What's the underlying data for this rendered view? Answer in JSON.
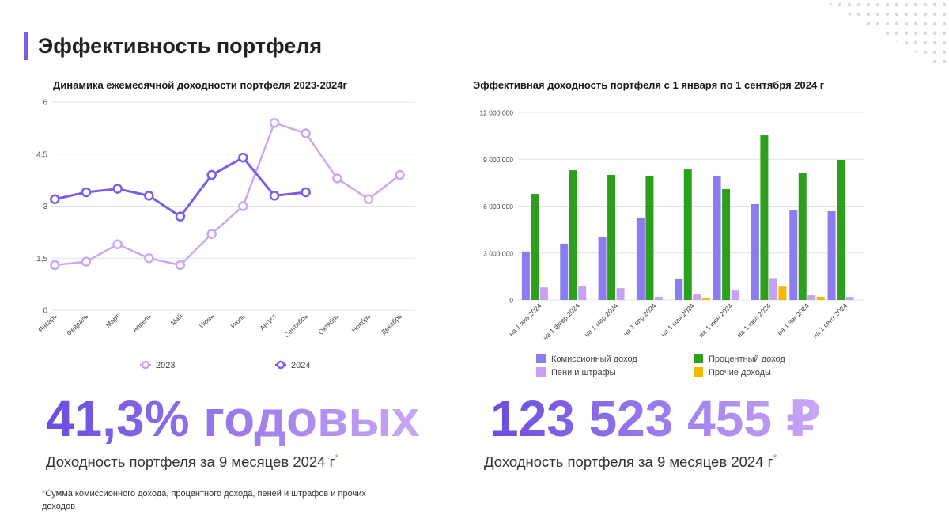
{
  "title": "Эффективность портфеля",
  "chart_data": [
    {
      "type": "line",
      "title": "Динамика ежемесячной доходности портфеля 2023-2024г",
      "categories": [
        "Январь",
        "Февраль",
        "Март",
        "Апрель",
        "Май",
        "Июнь",
        "Июль",
        "Август",
        "Сентябрь",
        "Октябрь",
        "Ноябрь",
        "Декабрь"
      ],
      "series": [
        {
          "name": "2023",
          "color": "#c9a8f5",
          "values": [
            1.3,
            1.4,
            1.9,
            1.5,
            1.3,
            2.2,
            3.0,
            5.4,
            5.1,
            3.8,
            3.2,
            3.9
          ]
        },
        {
          "name": "2024",
          "color": "#7b5ce6",
          "values": [
            3.2,
            3.4,
            3.5,
            3.3,
            2.7,
            3.9,
            4.4,
            3.3,
            3.4,
            null,
            null,
            null
          ]
        }
      ],
      "ylim": [
        0,
        6
      ],
      "yticks": [
        0,
        {
          "value": 1.5,
          "label": "1,5"
        },
        3,
        {
          "value": 4.5,
          "label": "4,5"
        },
        6
      ],
      "grid": true,
      "legend": "bottom"
    },
    {
      "type": "bar",
      "title": "Эффективная доходность портфеля с 1 января по 1 сентября 2024 г",
      "categories": [
        "на 1 янв 2024",
        "на 1 февр 2024",
        "на 1 мар 2024",
        "на 1 апр 2024",
        "на 1 мая 2024",
        "на 1 июн 2024",
        "на 1 июл 2024",
        "на 1 авг 2024",
        "на 1 сент 2024"
      ],
      "series": [
        {
          "name": "Комиссионный доход",
          "color": "#8b7cf0",
          "values": [
            3100000,
            3600000,
            4000000,
            5270000,
            1370000,
            7950000,
            6130000,
            5720000,
            5670000
          ]
        },
        {
          "name": "Процентный доход",
          "color": "#2ca01c",
          "values": [
            6780000,
            8300000,
            8000000,
            7950000,
            8350000,
            7090000,
            10530000,
            8150000,
            8960000
          ]
        },
        {
          "name": "Пени и штрафы",
          "color": "#c8a0f5",
          "values": [
            800000,
            900000,
            750000,
            200000,
            350000,
            600000,
            1400000,
            300000,
            200000
          ]
        },
        {
          "name": "Прочие доходы",
          "color": "#f5b800",
          "values": [
            0,
            0,
            0,
            0,
            150000,
            0,
            850000,
            200000,
            0
          ]
        }
      ],
      "ylim": [
        0,
        12000000
      ],
      "yticks": [
        0,
        {
          "value": 3000000,
          "label": "3 000 000"
        },
        {
          "value": 6000000,
          "label": "6 000 000"
        },
        {
          "value": 9000000,
          "label": "9 000 000"
        },
        {
          "value": 12000000,
          "label": "12 000 000"
        }
      ],
      "grid": true,
      "legend": "bottom"
    }
  ],
  "kpis": [
    {
      "value": "41,3% годовых",
      "caption": "Доходность портфеля за 9 месяцев 2024 г",
      "mark": "*"
    },
    {
      "value": "123 523 455 ₽",
      "caption": "Доходность портфеля за 9 месяцев 2024 г",
      "mark": "*"
    }
  ],
  "footnote": {
    "mark": "*",
    "text": "Сумма комиссионного дохода, процентного дохода, пеней и штрафов и прочих доходов"
  }
}
